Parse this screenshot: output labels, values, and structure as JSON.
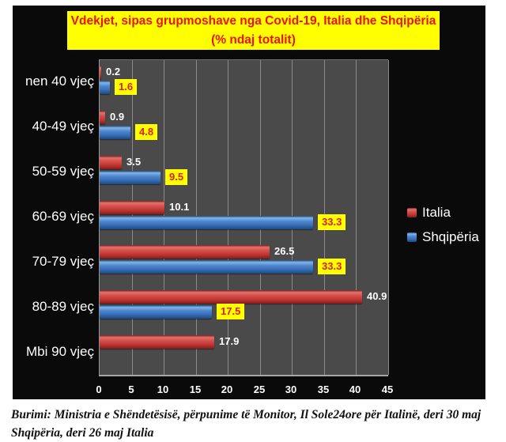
{
  "chart": {
    "title_line1": "Vdekjet, sipas grupmoshave nga Covid-19, Italia dhe Shqipëria",
    "title_line2": "(% ndaj totalit)"
  },
  "chart_data": {
    "type": "bar",
    "orientation": "horizontal",
    "title": "Vdekjet, sipas grupmoshave nga Covid-19, Italia dhe Shqipëria (% ndaj totalit)",
    "categories": [
      "nen 40 vjeç",
      "40-49 vjeç",
      "50-59 vjeç",
      "60-69 vjeç",
      "70-79 vjeç",
      "80-89 vjeç",
      "Mbi 90 vjeç"
    ],
    "series": [
      {
        "name": "Italia",
        "color": "#c9403d",
        "label_style": "white",
        "values": [
          0.2,
          0.9,
          3.5,
          10.1,
          26.5,
          40.9,
          17.9
        ]
      },
      {
        "name": "Shqipëria",
        "color": "#3f7dc8",
        "label_style": "yellow-box",
        "values": [
          1.6,
          4.8,
          9.5,
          33.3,
          33.3,
          17.5,
          null
        ]
      }
    ],
    "xlim": [
      0,
      45
    ],
    "xticks": [
      0,
      5,
      10,
      15,
      20,
      25,
      30,
      35,
      40,
      45
    ],
    "grid": "vertical",
    "legend_position": "right",
    "plot_bg": "#4a4a4a",
    "frame_bg": "#0a0a0a",
    "title_bg": "#ffff00",
    "title_color": "#ee1100",
    "gridline_color": "#8a8a8a"
  },
  "source": {
    "line1": "Burimi: Ministria e Shëndetësisë, përpunime të Monitor, Il Sole24ore për Italinë, deri 30 maj",
    "line2": "Shqipëria, deri 26 maj Italia"
  }
}
